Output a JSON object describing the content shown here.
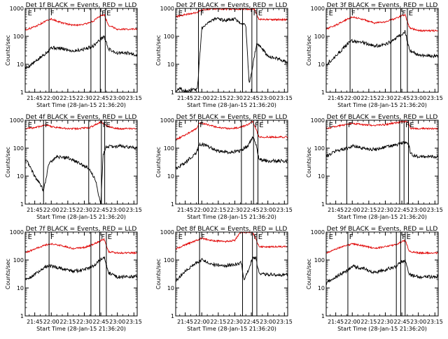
{
  "figure": {
    "xlabel": "Start Time (28-Jan-15 21:36:20)",
    "ylabel": "Counts/sec",
    "x_tick_labels": [
      "21:45",
      "22:00",
      "22:15",
      "22:30",
      "22:45",
      "23:00",
      "23:15"
    ],
    "y_tick_labels": [
      "1",
      "10",
      "100",
      "1000"
    ],
    "colors": {
      "events": "#000000",
      "lld": "#e00000",
      "axes": "#000000",
      "background": "#ffffff"
    }
  },
  "chart_data": [
    {
      "type": "line",
      "title": "Det 1f BLACK = Events, RED = LLD",
      "xlim": [
        "21:36:20",
        "23:18:00"
      ],
      "ylim": [
        1,
        1000
      ],
      "yscale": "log",
      "vlines": [
        "21:58:00",
        "22:36:00",
        "22:44:30",
        "22:49:00"
      ],
      "flags": [
        {
          "label": "E",
          "time": "21:38:00"
        },
        {
          "label": "F",
          "time": "21:58:30"
        },
        {
          "label": "F",
          "time": "22:45:00"
        },
        {
          "label": "E",
          "time": "22:49:30"
        }
      ],
      "series": [
        {
          "color": "#000000",
          "x": [
            "21:36:20",
            "21:45:00",
            "21:55:00",
            "22:00:00",
            "22:10:00",
            "22:20:00",
            "22:30:00",
            "22:38:00",
            "22:45:00",
            "22:48:00",
            "22:52:00",
            "23:00:00",
            "23:10:00",
            "23:17:00"
          ],
          "values": [
            7,
            12,
            25,
            40,
            36,
            30,
            35,
            45,
            80,
            100,
            35,
            25,
            25,
            22
          ]
        },
        {
          "color": "#e00000",
          "x": [
            "21:36:20",
            "21:45:00",
            "21:55:00",
            "22:00:00",
            "22:10:00",
            "22:20:00",
            "22:30:00",
            "22:38:00",
            "22:45:00",
            "22:48:00",
            "22:52:00",
            "23:00:00",
            "23:10:00",
            "23:17:00"
          ],
          "values": [
            170,
            220,
            350,
            420,
            300,
            250,
            270,
            350,
            550,
            600,
            250,
            180,
            180,
            180
          ]
        }
      ]
    },
    {
      "type": "line",
      "title": "Det 2f BLACK = Events, RED = LLD",
      "xlim": [
        "21:36:20",
        "23:18:00"
      ],
      "ylim": [
        1,
        1000
      ],
      "yscale": "log",
      "vlines": [
        "21:57:00",
        "22:37:00",
        "22:45:30",
        "22:50:00"
      ],
      "flags": [
        {
          "label": "E",
          "time": "21:38:00"
        },
        {
          "label": "F",
          "time": "21:58:00"
        },
        {
          "label": "F",
          "time": "22:46:00"
        },
        {
          "label": "E",
          "time": "22:50:30"
        }
      ],
      "series": [
        {
          "color": "#000000",
          "x": [
            "21:36:20",
            "21:40:00",
            "21:44:00",
            "21:50:00",
            "21:56:00",
            "22:00:00",
            "22:05:00",
            "22:12:00",
            "22:20:00",
            "22:30:00",
            "22:36:00",
            "22:40:00",
            "22:43:00",
            "22:46:00",
            "22:50:00",
            "23:00:00",
            "23:10:00",
            "23:17:00"
          ],
          "values": [
            1,
            1.5,
            1,
            1.2,
            1.3,
            200,
            300,
            420,
            380,
            420,
            300,
            250,
            2,
            8,
            60,
            20,
            15,
            12
          ]
        },
        {
          "color": "#e00000",
          "x": [
            "21:36:20",
            "21:45:00",
            "21:55:00",
            "22:00:00",
            "22:10:00",
            "22:20:00",
            "22:30:00",
            "22:40:00",
            "22:45:00",
            "22:48:00",
            "22:52:00",
            "23:00:00",
            "23:10:00",
            "23:17:00"
          ],
          "values": [
            500,
            600,
            700,
            900,
            950,
            950,
            950,
            950,
            950,
            900,
            400,
            400,
            400,
            400
          ]
        }
      ]
    },
    {
      "type": "line",
      "title": "Det 3f BLACK = Events, RED = LLD",
      "xlim": [
        "21:36:20",
        "23:18:00"
      ],
      "ylim": [
        1,
        1000
      ],
      "yscale": "log",
      "vlines": [
        "21:58:00",
        "22:35:00",
        "22:44:00",
        "22:50:00"
      ],
      "flags": [
        {
          "label": "E",
          "time": "21:38:00"
        },
        {
          "label": "F",
          "time": "21:58:30"
        },
        {
          "label": "F",
          "time": "22:44:30"
        },
        {
          "label": "E",
          "time": "22:50:30"
        }
      ],
      "series": [
        {
          "color": "#000000",
          "x": [
            "21:36:20",
            "21:45:00",
            "21:55:00",
            "22:00:00",
            "22:10:00",
            "22:20:00",
            "22:30:00",
            "22:38:00",
            "22:45:00",
            "22:48:00",
            "22:52:00",
            "23:00:00",
            "23:10:00",
            "23:17:00"
          ],
          "values": [
            10,
            20,
            50,
            70,
            60,
            45,
            50,
            80,
            120,
            150,
            30,
            22,
            20,
            20
          ]
        },
        {
          "color": "#e00000",
          "x": [
            "21:36:20",
            "21:45:00",
            "21:55:00",
            "22:00:00",
            "22:10:00",
            "22:20:00",
            "22:30:00",
            "22:38:00",
            "22:45:00",
            "22:48:00",
            "22:52:00",
            "23:00:00",
            "23:10:00",
            "23:17:00"
          ],
          "values": [
            180,
            250,
            400,
            500,
            400,
            300,
            330,
            420,
            550,
            600,
            200,
            160,
            160,
            160
          ]
        }
      ]
    },
    {
      "type": "line",
      "title": "Det 4f BLACK = Events, RED = LLD",
      "xlim": [
        "21:36:20",
        "23:18:00"
      ],
      "ylim": [
        1,
        1000
      ],
      "yscale": "log",
      "vlines": [
        "21:53:00",
        "22:34:00",
        "22:45:30",
        "22:48:30"
      ],
      "flags": [
        {
          "label": "E",
          "time": "21:38:00"
        },
        {
          "label": "F",
          "time": "21:53:30"
        },
        {
          "label": "F",
          "time": "22:46:00"
        },
        {
          "label": "E",
          "time": "22:49:00"
        }
      ],
      "series": [
        {
          "color": "#000000",
          "x": [
            "21:36:20",
            "21:40:00",
            "21:45:00",
            "21:50:00",
            "21:53:00",
            "21:58:00",
            "22:05:00",
            "22:15:00",
            "22:25:00",
            "22:33:00",
            "22:40:00",
            "22:43:00",
            "22:45:00",
            "22:47:00",
            "22:50:00",
            "23:00:00",
            "23:10:00",
            "23:17:00"
          ],
          "values": [
            40,
            25,
            10,
            5,
            3,
            30,
            50,
            45,
            30,
            20,
            8,
            2,
            1,
            60,
            110,
            120,
            110,
            100
          ]
        },
        {
          "color": "#e00000",
          "x": [
            "21:36:20",
            "21:45:00",
            "21:55:00",
            "22:05:00",
            "22:15:00",
            "22:25:00",
            "22:35:00",
            "22:42:00",
            "22:45:00",
            "22:48:00",
            "22:52:00",
            "23:00:00",
            "23:10:00",
            "23:17:00"
          ],
          "values": [
            500,
            550,
            650,
            550,
            500,
            500,
            550,
            750,
            900,
            700,
            600,
            500,
            500,
            500
          ]
        }
      ]
    },
    {
      "type": "line",
      "title": "Det 5f BLACK = Events, RED = LLD",
      "xlim": [
        "21:36:20",
        "23:18:00"
      ],
      "ylim": [
        1,
        1000
      ],
      "yscale": "log",
      "vlines": [
        "21:57:00",
        "22:36:00",
        "22:47:00",
        "22:51:00"
      ],
      "flags": [
        {
          "label": "E",
          "time": "21:38:00"
        },
        {
          "label": "F",
          "time": "21:57:30"
        },
        {
          "label": "F",
          "time": "22:47:30"
        },
        {
          "label": "E",
          "time": "22:51:30"
        }
      ],
      "series": [
        {
          "color": "#000000",
          "x": [
            "21:36:20",
            "21:45:00",
            "21:55:00",
            "21:58:00",
            "22:05:00",
            "22:15:00",
            "22:25:00",
            "22:35:00",
            "22:42:00",
            "22:46:00",
            "22:49:00",
            "22:52:00",
            "23:00:00",
            "23:17:00"
          ],
          "values": [
            18,
            30,
            70,
            140,
            120,
            80,
            70,
            80,
            120,
            250,
            150,
            40,
            35,
            35
          ]
        },
        {
          "color": "#e00000",
          "x": [
            "21:36:20",
            "21:45:00",
            "21:55:00",
            "21:58:00",
            "22:05:00",
            "22:15:00",
            "22:25:00",
            "22:35:00",
            "22:42:00",
            "22:46:00",
            "22:49:00",
            "22:52:00",
            "23:00:00",
            "23:17:00"
          ],
          "values": [
            200,
            300,
            500,
            800,
            700,
            550,
            500,
            550,
            700,
            900,
            500,
            250,
            250,
            250
          ]
        }
      ]
    },
    {
      "type": "line",
      "title": "Det 6f BLACK = Events, RED = LLD",
      "xlim": [
        "21:36:20",
        "23:18:00"
      ],
      "ylim": [
        1,
        1000
      ],
      "yscale": "log",
      "vlines": [
        "21:55:00",
        "22:43:00",
        "22:47:00",
        "22:51:00"
      ],
      "flags": [
        {
          "label": "E",
          "time": "21:38:00"
        },
        {
          "label": "F",
          "time": "21:55:30"
        },
        {
          "label": "F",
          "time": "22:47:30"
        },
        {
          "label": "E",
          "time": "22:51:30"
        }
      ],
      "series": [
        {
          "color": "#000000",
          "x": [
            "21:36:20",
            "21:45:00",
            "21:55:00",
            "22:00:00",
            "22:10:00",
            "22:20:00",
            "22:30:00",
            "22:40:00",
            "22:47:00",
            "22:51:00",
            "22:53:00",
            "23:00:00",
            "23:17:00"
          ],
          "values": [
            50,
            80,
            100,
            120,
            100,
            90,
            110,
            130,
            160,
            150,
            60,
            50,
            50
          ]
        },
        {
          "color": "#e00000",
          "x": [
            "21:36:20",
            "21:45:00",
            "21:55:00",
            "22:00:00",
            "22:10:00",
            "22:20:00",
            "22:30:00",
            "22:40:00",
            "22:47:00",
            "22:51:00",
            "22:53:00",
            "23:00:00",
            "23:17:00"
          ],
          "values": [
            500,
            600,
            700,
            750,
            700,
            650,
            700,
            800,
            900,
            850,
            500,
            500,
            500
          ]
        }
      ]
    },
    {
      "type": "line",
      "title": "Det 7f BLACK = Events, RED = LLD",
      "xlim": [
        "21:36:20",
        "23:18:00"
      ],
      "ylim": [
        1,
        1000
      ],
      "yscale": "log",
      "vlines": [
        "21:58:00",
        "22:36:00",
        "22:44:00",
        "22:50:00"
      ],
      "flags": [
        {
          "label": "E",
          "time": "21:38:00"
        },
        {
          "label": "F",
          "time": "21:58:30"
        },
        {
          "label": "F",
          "time": "22:44:30"
        },
        {
          "label": "E",
          "time": "22:50:30"
        }
      ],
      "series": [
        {
          "color": "#000000",
          "x": [
            "21:36:20",
            "21:45:00",
            "21:55:00",
            "22:00:00",
            "22:10:00",
            "22:20:00",
            "22:30:00",
            "22:38:00",
            "22:45:00",
            "22:48:00",
            "22:52:00",
            "23:00:00",
            "23:10:00",
            "23:17:00"
          ],
          "values": [
            20,
            30,
            60,
            60,
            50,
            40,
            45,
            60,
            110,
            130,
            35,
            25,
            25,
            25
          ]
        },
        {
          "color": "#e00000",
          "x": [
            "21:36:20",
            "21:45:00",
            "21:55:00",
            "22:00:00",
            "22:10:00",
            "22:20:00",
            "22:30:00",
            "22:38:00",
            "22:45:00",
            "22:48:00",
            "22:52:00",
            "23:00:00",
            "23:10:00",
            "23:17:00"
          ],
          "values": [
            180,
            250,
            350,
            380,
            320,
            260,
            280,
            360,
            500,
            550,
            200,
            180,
            180,
            180
          ]
        }
      ]
    },
    {
      "type": "line",
      "title": "Det 8f BLACK = Events, RED = LLD",
      "xlim": [
        "21:36:20",
        "23:18:00"
      ],
      "ylim": [
        1,
        1000
      ],
      "yscale": "log",
      "vlines": [
        "21:58:00",
        "22:37:00",
        "22:46:00",
        "22:50:00"
      ],
      "flags": [
        {
          "label": "E",
          "time": "21:38:00"
        },
        {
          "label": "F",
          "time": "21:58:30"
        },
        {
          "label": "F",
          "time": "22:46:30"
        },
        {
          "label": "E",
          "time": "22:50:30"
        }
      ],
      "series": [
        {
          "color": "#000000",
          "x": [
            "21:36:20",
            "21:45:00",
            "21:55:00",
            "22:00:00",
            "22:10:00",
            "22:20:00",
            "22:30:00",
            "22:36:00",
            "22:38:00",
            "22:42:00",
            "22:46:00",
            "22:49:00",
            "22:52:00",
            "23:00:00",
            "23:17:00"
          ],
          "values": [
            18,
            40,
            80,
            100,
            70,
            60,
            70,
            80,
            20,
            40,
            110,
            120,
            35,
            30,
            30
          ]
        },
        {
          "color": "#e00000",
          "x": [
            "21:36:20",
            "21:45:00",
            "21:55:00",
            "22:00:00",
            "22:10:00",
            "22:20:00",
            "22:30:00",
            "22:35:00",
            "22:40:00",
            "22:46:00",
            "22:49:00",
            "22:52:00",
            "23:00:00",
            "23:17:00"
          ],
          "values": [
            250,
            350,
            500,
            600,
            500,
            450,
            500,
            1000,
            1000,
            1000,
            600,
            300,
            300,
            300
          ]
        }
      ]
    },
    {
      "type": "line",
      "title": "Det 9f BLACK = Events, RED = LLD",
      "xlim": [
        "21:36:20",
        "23:18:00"
      ],
      "ylim": [
        1,
        1000
      ],
      "yscale": "log",
      "vlines": [
        "21:56:00",
        "22:40:00",
        "22:44:00",
        "22:48:00"
      ],
      "flags": [
        {
          "label": "E",
          "time": "21:38:00"
        },
        {
          "label": "F",
          "time": "21:56:30"
        },
        {
          "label": "F",
          "time": "22:44:30"
        },
        {
          "label": "E",
          "time": "22:48:30"
        }
      ],
      "series": [
        {
          "color": "#000000",
          "x": [
            "21:36:20",
            "21:45:00",
            "21:55:00",
            "22:00:00",
            "22:10:00",
            "22:20:00",
            "22:30:00",
            "22:40:00",
            "22:45:00",
            "22:48:00",
            "22:52:00",
            "23:00:00",
            "23:17:00"
          ],
          "values": [
            15,
            25,
            40,
            60,
            50,
            35,
            45,
            60,
            90,
            100,
            30,
            25,
            25
          ]
        },
        {
          "color": "#e00000",
          "x": [
            "21:36:20",
            "21:45:00",
            "21:55:00",
            "22:00:00",
            "22:10:00",
            "22:20:00",
            "22:30:00",
            "22:40:00",
            "22:45:00",
            "22:48:00",
            "22:52:00",
            "23:00:00",
            "23:17:00"
          ],
          "values": [
            180,
            250,
            330,
            380,
            320,
            260,
            300,
            360,
            450,
            500,
            200,
            180,
            180
          ]
        }
      ]
    }
  ]
}
